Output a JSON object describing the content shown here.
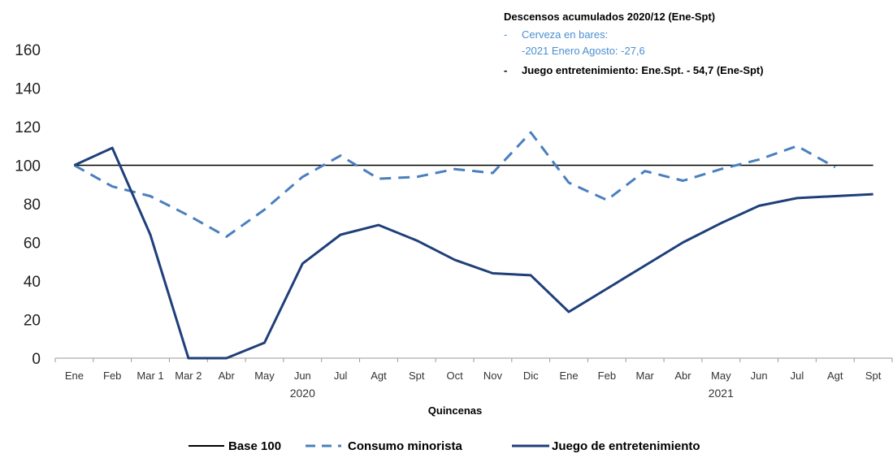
{
  "chart_data": {
    "type": "line",
    "categories": [
      "Ene",
      "Feb",
      "Mar 1",
      "Mar 2",
      "Abr",
      "May",
      "Jun",
      "Jul",
      "Agt",
      "Spt",
      "Oct",
      "Nov",
      "Dic",
      "Ene",
      "Feb",
      "Mar",
      "Abr",
      "May",
      "Jun",
      "Jul",
      "Agt",
      "Spt"
    ],
    "year_labels": [
      "2020",
      "2021"
    ],
    "xlabel": "Quincenas",
    "ylim": [
      0,
      160
    ],
    "yticks": [
      0,
      20,
      40,
      60,
      80,
      100,
      120,
      140,
      160
    ],
    "grid": false,
    "legend_position": "bottom",
    "series": [
      {
        "name": "Base 100",
        "style": "solid",
        "color": "#000000",
        "values": [
          100,
          100,
          100,
          100,
          100,
          100,
          100,
          100,
          100,
          100,
          100,
          100,
          100,
          100,
          100,
          100,
          100,
          100,
          100,
          100,
          100,
          100
        ]
      },
      {
        "name": "Consumo minorista",
        "style": "dashed",
        "color": "#4a7fbe",
        "values": [
          100,
          89,
          84,
          74,
          63,
          77,
          94,
          105,
          93,
          94,
          98,
          96,
          117,
          91,
          82,
          97,
          92,
          98,
          103,
          110,
          99,
          null
        ]
      },
      {
        "name": "Juego de entretenimiento",
        "style": "solid",
        "color": "#1f3f7a",
        "values": [
          100,
          109,
          64,
          0,
          0,
          8,
          49,
          64,
          69,
          61,
          51,
          44,
          43,
          24,
          36,
          48,
          60,
          70,
          79,
          83,
          84,
          85
        ]
      }
    ],
    "annotation": {
      "title": "Descensos acumulados  2020/12 (Ene-Spt)",
      "dash1": "-",
      "line1": "Cerveza en bares:",
      "line2": "-2021 Enero Agosto: -27,6",
      "dash2": "-",
      "line3": "Juego  entretenimiento:  Ene.Spt.  - 54,7  (Ene-Spt)"
    }
  }
}
